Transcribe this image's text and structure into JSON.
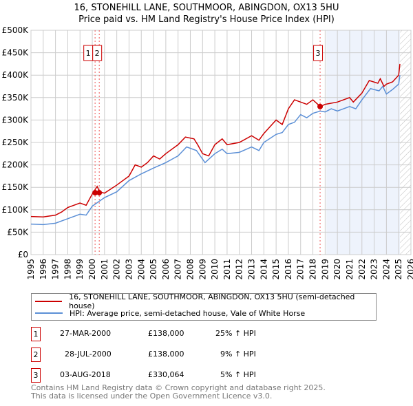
{
  "title": "16, STONEHILL LANE, SOUTHMOOR, ABINGDON, OX13 5HU",
  "subtitle": "Price paid vs. HM Land Registry's House Price Index (HPI)",
  "chart_data": {
    "type": "line",
    "title": "16, STONEHILL LANE, SOUTHMOOR, ABINGDON, OX13 5HU",
    "subtitle": "Price paid vs. HM Land Registry's House Price Index (HPI)",
    "xlim": [
      1995,
      2026
    ],
    "ylim": [
      0,
      500000
    ],
    "yticks": [
      0,
      50000,
      100000,
      150000,
      200000,
      250000,
      300000,
      350000,
      400000,
      450000,
      500000
    ],
    "ytick_labels": [
      "£0",
      "£50K",
      "£100K",
      "£150K",
      "£200K",
      "£250K",
      "£300K",
      "£350K",
      "£400K",
      "£450K",
      "£500K"
    ],
    "xticks": [
      "1995",
      "1996",
      "1997",
      "1998",
      "1999",
      "2000",
      "2001",
      "2002",
      "2003",
      "2004",
      "2005",
      "2006",
      "2007",
      "2008",
      "2009",
      "2010",
      "2011",
      "2012",
      "2013",
      "2014",
      "2015",
      "2016",
      "2017",
      "2018",
      "2019",
      "2020",
      "2021",
      "2022",
      "2023",
      "2024",
      "2025",
      "2026"
    ],
    "grid": true,
    "shaded_range": [
      2019.1,
      2025.1
    ],
    "hatched_from": 2025.1,
    "series": [
      {
        "name": "16, STONEHILL LANE, SOUTHMOOR, ABINGDON, OX13 5HU (semi-detached house)",
        "color": "#cc0000",
        "x": [
          1995,
          1996,
          1997,
          1997.5,
          1998,
          1999,
          1999.5,
          2000,
          2000.4,
          2000.6,
          2001,
          2002,
          2003,
          2003.5,
          2004,
          2004.5,
          2005,
          2005.5,
          2006,
          2007,
          2007.6,
          2008.3,
          2008.6,
          2009,
          2009.5,
          2010,
          2010.6,
          2011,
          2012,
          2013,
          2013.6,
          2014,
          2015,
          2015.5,
          2016,
          2016.5,
          2017,
          2017.5,
          2018,
          2018.6,
          2019,
          2020,
          2021,
          2021.3,
          2022,
          2022.6,
          2023.3,
          2023.5,
          2023.8,
          2024,
          2024.5,
          2025,
          2025.1
        ],
        "y": [
          85000,
          84000,
          88000,
          95000,
          105000,
          115000,
          110000,
          135000,
          152000,
          140000,
          137000,
          155000,
          175000,
          200000,
          195000,
          205000,
          220000,
          213000,
          225000,
          245000,
          262000,
          258000,
          245000,
          225000,
          220000,
          245000,
          258000,
          245000,
          250000,
          265000,
          255000,
          270000,
          300000,
          290000,
          325000,
          345000,
          340000,
          335000,
          345000,
          330000,
          335000,
          340000,
          350000,
          340000,
          360000,
          388000,
          382000,
          392000,
          375000,
          380000,
          385000,
          400000,
          425000
        ]
      },
      {
        "name": "HPI: Average price, semi-detached house, Vale of White Horse",
        "color": "#5b8fd6",
        "x": [
          1995,
          1996,
          1997,
          1998,
          1999,
          1999.5,
          2000,
          2001,
          2002,
          2003,
          2004,
          2005,
          2006,
          2007,
          2007.7,
          2008.5,
          2009.2,
          2010,
          2010.6,
          2011,
          2012,
          2013,
          2013.6,
          2014,
          2015,
          2015.5,
          2016,
          2016.5,
          2017,
          2017.5,
          2018,
          2018.6,
          2019,
          2019.5,
          2020,
          2021,
          2021.5,
          2022,
          2022.7,
          2023.4,
          2023.7,
          2024,
          2024.5,
          2025,
          2025.1
        ],
        "y": [
          68000,
          67000,
          70000,
          80000,
          90000,
          88000,
          108000,
          127000,
          140000,
          165000,
          180000,
          193000,
          205000,
          220000,
          240000,
          232000,
          205000,
          225000,
          235000,
          225000,
          228000,
          240000,
          232000,
          250000,
          268000,
          272000,
          290000,
          295000,
          312000,
          305000,
          315000,
          320000,
          318000,
          325000,
          320000,
          330000,
          325000,
          345000,
          370000,
          365000,
          375000,
          358000,
          368000,
          380000,
          400000
        ]
      }
    ],
    "sales": [
      {
        "label": "1",
        "x": 2000.23,
        "price": 138000
      },
      {
        "label": "2",
        "x": 2000.57,
        "price": 138000
      },
      {
        "label": "3",
        "x": 2018.59,
        "price": 330064
      }
    ]
  },
  "legend": {
    "red": "16, STONEHILL LANE, SOUTHMOOR, ABINGDON, OX13 5HU (semi-detached house)",
    "blue": "HPI: Average price, semi-detached house, Vale of White Horse"
  },
  "transactions": [
    {
      "n": "1",
      "date": "27-MAR-2000",
      "price": "£138,000",
      "hpi": "25% ↑ HPI"
    },
    {
      "n": "2",
      "date": "28-JUL-2000",
      "price": "£138,000",
      "hpi": "9% ↑ HPI"
    },
    {
      "n": "3",
      "date": "03-AUG-2018",
      "price": "£330,064",
      "hpi": "5% ↑ HPI"
    }
  ],
  "footer": {
    "line1": "Contains HM Land Registry data © Crown copyright and database right 2025.",
    "line2": "This data is licensed under the Open Government Licence v3.0."
  }
}
